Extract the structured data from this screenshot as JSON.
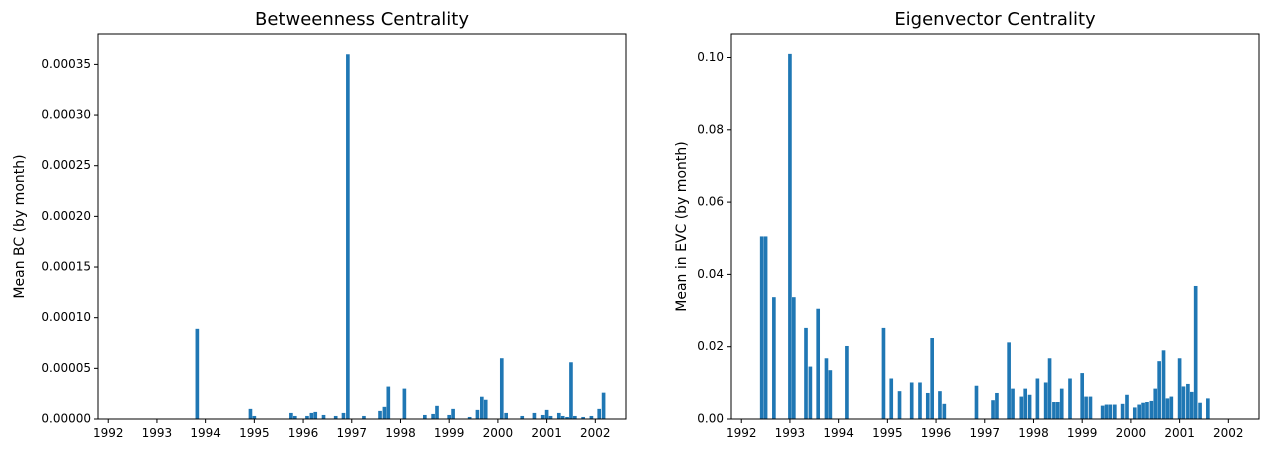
{
  "chart_data": [
    {
      "type": "bar",
      "title": "Betweenness Centrality",
      "xlabel": "",
      "ylabel": "Mean BC (by month)",
      "xlim": [
        1991.79,
        2002.63
      ],
      "ylim": [
        0,
        0.00038
      ],
      "x_ticks": [
        "1992",
        "1993",
        "1994",
        "1995",
        "1996",
        "1997",
        "1998",
        "1999",
        "2000",
        "2001",
        "2002"
      ],
      "y_ticks": [
        "0.00000",
        "0.00005",
        "0.00010",
        "0.00015",
        "0.00020",
        "0.00025",
        "0.00030",
        "0.00035"
      ],
      "y_tick_values": [
        0,
        5e-05,
        0.0001,
        0.00015,
        0.0002,
        0.00025,
        0.0003,
        0.00035
      ],
      "bar_width_years": 0.075,
      "color": "#1f77b4",
      "x": [
        1993.83,
        1994.92,
        1995.0,
        1995.75,
        1995.83,
        1996.08,
        1996.17,
        1996.25,
        1996.42,
        1996.67,
        1996.83,
        1996.92,
        1997.25,
        1997.58,
        1997.67,
        1997.75,
        1998.08,
        1998.5,
        1998.67,
        1998.75,
        1999.0,
        1999.08,
        1999.42,
        1999.58,
        1999.67,
        1999.75,
        2000.08,
        2000.17,
        2000.5,
        2000.75,
        2000.92,
        2001.0,
        2001.08,
        2001.25,
        2001.33,
        2001.42,
        2001.5,
        2001.58,
        2001.75,
        2001.92,
        2002.08,
        2002.17
      ],
      "values": [
        8.9e-05,
        1e-05,
        3e-06,
        6e-06,
        3e-06,
        3e-06,
        6e-06,
        7e-06,
        4e-06,
        3e-06,
        6e-06,
        0.00036,
        3e-06,
        8e-06,
        1.2e-05,
        3.2e-05,
        3e-05,
        4e-06,
        5e-06,
        1.3e-05,
        4e-06,
        1e-05,
        2e-06,
        9e-06,
        2.2e-05,
        1.9e-05,
        6e-05,
        6e-06,
        3e-06,
        6e-06,
        4e-06,
        9e-06,
        3e-06,
        6e-06,
        3e-06,
        2e-06,
        5.6e-05,
        3e-06,
        2e-06,
        3e-06,
        1e-05,
        2.6e-05
      ]
    },
    {
      "type": "bar",
      "title": "Eigenvector Centrality",
      "xlabel": "",
      "ylabel": "Mean in EVC (by month)",
      "xlim": [
        1991.79,
        2002.63
      ],
      "ylim": [
        0,
        0.1065
      ],
      "x_ticks": [
        "1992",
        "1993",
        "1994",
        "1995",
        "1996",
        "1997",
        "1998",
        "1999",
        "2000",
        "2001",
        "2002"
      ],
      "y_ticks": [
        "0.00",
        "0.02",
        "0.04",
        "0.06",
        "0.08",
        "0.10"
      ],
      "y_tick_values": [
        0,
        0.02,
        0.04,
        0.06,
        0.08,
        0.1
      ],
      "bar_width_years": 0.075,
      "color": "#1f77b4",
      "x": [
        1992.42,
        1992.5,
        1992.67,
        1993.0,
        1993.08,
        1993.33,
        1993.42,
        1993.58,
        1993.75,
        1993.83,
        1994.17,
        1994.92,
        1995.08,
        1995.25,
        1995.5,
        1995.67,
        1995.83,
        1995.92,
        1996.08,
        1996.17,
        1996.83,
        1997.17,
        1997.25,
        1997.5,
        1997.58,
        1997.75,
        1997.83,
        1997.92,
        1998.08,
        1998.25,
        1998.33,
        1998.42,
        1998.5,
        1998.58,
        1998.75,
        1999.0,
        1999.08,
        1999.17,
        1999.42,
        1999.5,
        1999.58,
        1999.67,
        1999.83,
        1999.92,
        2000.08,
        2000.17,
        2000.25,
        2000.33,
        2000.42,
        2000.5,
        2000.58,
        2000.67,
        2000.75,
        2000.83,
        2001.0,
        2001.08,
        2001.17,
        2001.25,
        2001.33,
        2001.42,
        2001.58
      ],
      "values": [
        0.0505,
        0.0505,
        0.0337,
        0.101,
        0.0337,
        0.0252,
        0.0145,
        0.0305,
        0.0168,
        0.0135,
        0.0202,
        0.0252,
        0.0112,
        0.0077,
        0.0101,
        0.0101,
        0.0072,
        0.0224,
        0.0077,
        0.0042,
        0.0092,
        0.0052,
        0.0072,
        0.0212,
        0.0084,
        0.0062,
        0.0084,
        0.0067,
        0.0112,
        0.0101,
        0.0168,
        0.0047,
        0.0047,
        0.0084,
        0.0112,
        0.0127,
        0.0062,
        0.0062,
        0.0037,
        0.004,
        0.004,
        0.004,
        0.0042,
        0.0067,
        0.0032,
        0.004,
        0.0045,
        0.0047,
        0.005,
        0.0084,
        0.016,
        0.019,
        0.0057,
        0.0062,
        0.0168,
        0.009,
        0.0097,
        0.0075,
        0.0368,
        0.0045,
        0.0057
      ]
    }
  ]
}
